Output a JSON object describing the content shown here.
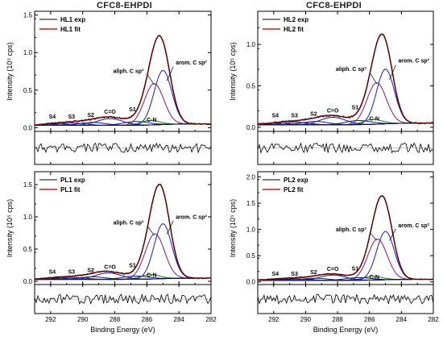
{
  "figure": {
    "left_title": "CFC8-EHPDI",
    "right_title": "CFC8-EHPDI",
    "x_label": "Binding Energy (eV)",
    "y_label": "Intensity (10⁵ cps)"
  },
  "colors": {
    "exp": "#000000",
    "fit": "#d11a1a",
    "arom": "#1a1acc",
    "aliph": "#7a1a7a",
    "cn": "#1a8a1a",
    "minor": "#1a1a8a",
    "bg": "#111111"
  },
  "chart_data": [
    {
      "type": "line",
      "panel": "HL1",
      "legend": [
        "HL1 exp",
        "HL1 fit"
      ],
      "xlim": [
        293,
        282
      ],
      "ylim": [
        -0.05,
        1.55
      ],
      "x_ticks": [
        292,
        290,
        288,
        286,
        284,
        282
      ],
      "y_ticks": [
        0.0,
        0.5,
        1.0,
        1.5
      ],
      "peak_labels": [
        "S4",
        "S3",
        "S2",
        "C=O",
        "S1",
        "aliph. C sp³",
        "C-N",
        "arom. C sp²"
      ],
      "components": [
        {
          "name": "arom. C sp²",
          "center": 285.0,
          "height": 0.72,
          "width": 0.55
        },
        {
          "name": "aliph. C sp³",
          "center": 285.55,
          "height": 0.55,
          "width": 0.6
        },
        {
          "name": "C-N",
          "center": 285.8,
          "height": 0.06,
          "width": 0.6
        },
        {
          "name": "S1",
          "center": 286.7,
          "height": 0.05,
          "width": 0.8
        },
        {
          "name": "C=O",
          "center": 288.3,
          "height": 0.09,
          "width": 0.8
        },
        {
          "name": "S2",
          "center": 289.4,
          "height": 0.04,
          "width": 0.8
        },
        {
          "name": "S3",
          "center": 290.6,
          "height": 0.03,
          "width": 0.8
        },
        {
          "name": "S4",
          "center": 291.8,
          "height": 0.02,
          "width": 0.8
        }
      ],
      "background_y": 0.03
    },
    {
      "type": "line",
      "panel": "HL2",
      "legend": [
        "HL2 exp",
        "HL2 fit"
      ],
      "xlim": [
        293,
        282
      ],
      "ylim": [
        -0.05,
        1.4
      ],
      "x_ticks": [
        292,
        290,
        288,
        286,
        284,
        282
      ],
      "y_ticks": [
        0.0,
        0.5,
        1.0
      ],
      "peak_labels": [
        "S4",
        "S3",
        "S2",
        "C=O",
        "S1",
        "aliph. C sp³",
        "C-N",
        "arom. C sp²"
      ],
      "components": [
        {
          "name": "arom. C sp²",
          "center": 285.0,
          "height": 0.66,
          "width": 0.55
        },
        {
          "name": "aliph. C sp³",
          "center": 285.55,
          "height": 0.5,
          "width": 0.6
        },
        {
          "name": "C-N",
          "center": 285.8,
          "height": 0.06,
          "width": 0.6
        },
        {
          "name": "S1",
          "center": 286.7,
          "height": 0.05,
          "width": 0.8
        },
        {
          "name": "C=O",
          "center": 288.3,
          "height": 0.09,
          "width": 0.8
        },
        {
          "name": "S2",
          "center": 289.4,
          "height": 0.04,
          "width": 0.8
        },
        {
          "name": "S3",
          "center": 290.6,
          "height": 0.03,
          "width": 0.8
        },
        {
          "name": "S4",
          "center": 291.8,
          "height": 0.02,
          "width": 0.8
        }
      ],
      "background_y": 0.03
    },
    {
      "type": "line",
      "panel": "PL1",
      "legend": [
        "PL1 exp",
        "PL1 fit"
      ],
      "xlim": [
        293,
        282
      ],
      "ylim": [
        -0.05,
        1.7
      ],
      "x_ticks": [
        292,
        290,
        288,
        286,
        284,
        282
      ],
      "y_ticks": [
        0.0,
        0.5,
        1.0,
        1.5
      ],
      "peak_labels": [
        "S4",
        "S3",
        "S2",
        "C=O",
        "S1",
        "aliph. C sp³",
        "C-N",
        "arom. C sp²"
      ],
      "components": [
        {
          "name": "arom. C sp²",
          "center": 285.0,
          "height": 0.85,
          "width": 0.55
        },
        {
          "name": "aliph. C sp³",
          "center": 285.5,
          "height": 0.7,
          "width": 0.6
        },
        {
          "name": "C-N",
          "center": 285.8,
          "height": 0.07,
          "width": 0.6
        },
        {
          "name": "S1",
          "center": 286.7,
          "height": 0.05,
          "width": 0.8
        },
        {
          "name": "C=O",
          "center": 288.4,
          "height": 0.1,
          "width": 0.8
        },
        {
          "name": "S2",
          "center": 289.4,
          "height": 0.04,
          "width": 0.8
        },
        {
          "name": "S3",
          "center": 290.6,
          "height": 0.03,
          "width": 0.8
        },
        {
          "name": "S4",
          "center": 291.8,
          "height": 0.02,
          "width": 0.8
        }
      ],
      "background_y": 0.03
    },
    {
      "type": "line",
      "panel": "PL2",
      "legend": [
        "PL2 exp",
        "PL2 fit"
      ],
      "xlim": [
        293,
        282
      ],
      "ylim": [
        -0.05,
        2.1
      ],
      "x_ticks": [
        292,
        290,
        288,
        286,
        284,
        282
      ],
      "y_ticks": [
        0.0,
        0.5,
        1.0,
        1.5,
        2.0
      ],
      "peak_labels": [
        "S4",
        "S3",
        "S2",
        "C=O",
        "S1",
        "aliph. C sp³",
        "C-N",
        "arom. C sp²"
      ],
      "components": [
        {
          "name": "arom. C sp²",
          "center": 285.0,
          "height": 0.92,
          "width": 0.55
        },
        {
          "name": "aliph. C sp³",
          "center": 285.5,
          "height": 0.78,
          "width": 0.6
        },
        {
          "name": "C-N",
          "center": 285.8,
          "height": 0.07,
          "width": 0.6
        },
        {
          "name": "S1",
          "center": 286.7,
          "height": 0.05,
          "width": 0.8
        },
        {
          "name": "C=O",
          "center": 288.3,
          "height": 0.1,
          "width": 0.8
        },
        {
          "name": "S2",
          "center": 289.4,
          "height": 0.04,
          "width": 0.8
        },
        {
          "name": "S3",
          "center": 290.6,
          "height": 0.03,
          "width": 0.8
        },
        {
          "name": "S4",
          "center": 291.8,
          "height": 0.02,
          "width": 0.8
        }
      ],
      "background_y": 0.03
    }
  ]
}
